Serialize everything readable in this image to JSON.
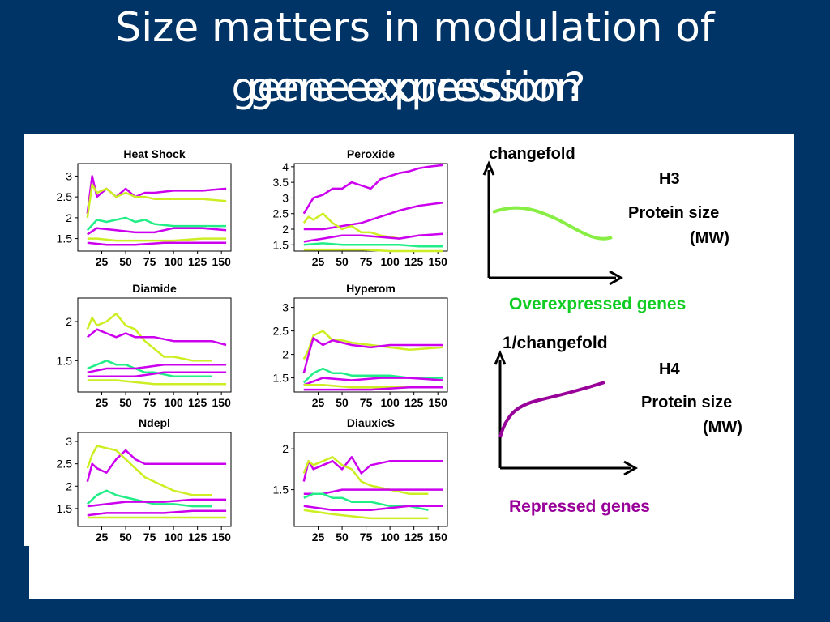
{
  "slide": {
    "title_line1": "Size matters in modulation of",
    "title_line2a": "gene expression",
    "title_line2b": "gene expression?"
  },
  "colors": {
    "background": "#003366",
    "panel": "#ffffff",
    "magenta": "#cc00ee",
    "yellow_green": "#ccee22",
    "green": "#22ee88",
    "light_green": "#88ee44",
    "purple": "#990099",
    "label_green": "#11cc22",
    "label_purple": "#990099"
  },
  "chart_data": [
    {
      "type": "line",
      "title": "Heat Shock",
      "x_ticks": [
        "25",
        "50",
        "75",
        "100",
        "125",
        "150"
      ],
      "xlim": [
        0,
        160
      ],
      "y_ticks": [
        "1.5",
        "2",
        "2.5",
        "3"
      ],
      "ylim": [
        1.2,
        3.3
      ],
      "series": [
        {
          "color": "magenta",
          "x": [
            10,
            15,
            20,
            30,
            40,
            50,
            60,
            70,
            80,
            100,
            130,
            155
          ],
          "y": [
            2.1,
            3.0,
            2.5,
            2.7,
            2.5,
            2.7,
            2.5,
            2.6,
            2.6,
            2.65,
            2.65,
            2.7
          ]
        },
        {
          "color": "yellow_green",
          "x": [
            10,
            15,
            20,
            30,
            40,
            50,
            60,
            70,
            80,
            100,
            130,
            155
          ],
          "y": [
            2.0,
            2.8,
            2.6,
            2.7,
            2.5,
            2.6,
            2.5,
            2.5,
            2.45,
            2.45,
            2.45,
            2.4
          ]
        },
        {
          "color": "green",
          "x": [
            10,
            20,
            30,
            40,
            50,
            60,
            70,
            80,
            100,
            130,
            155
          ],
          "y": [
            1.7,
            1.95,
            1.9,
            1.95,
            2.0,
            1.9,
            1.95,
            1.85,
            1.8,
            1.8,
            1.8
          ]
        },
        {
          "color": "magenta",
          "x": [
            10,
            20,
            40,
            60,
            80,
            100,
            130,
            155
          ],
          "y": [
            1.6,
            1.75,
            1.7,
            1.65,
            1.65,
            1.75,
            1.75,
            1.7
          ]
        },
        {
          "color": "yellow_green",
          "x": [
            10,
            20,
            40,
            60,
            80,
            100,
            130,
            155
          ],
          "y": [
            1.5,
            1.5,
            1.45,
            1.45,
            1.45,
            1.45,
            1.5,
            1.5
          ]
        },
        {
          "color": "magenta",
          "x": [
            10,
            30,
            60,
            90,
            120,
            155
          ],
          "y": [
            1.4,
            1.35,
            1.35,
            1.4,
            1.4,
            1.4
          ]
        }
      ]
    },
    {
      "type": "line",
      "title": "Peroxide",
      "x_ticks": [
        "25",
        "50",
        "75",
        "100",
        "125",
        "150"
      ],
      "xlim": [
        0,
        160
      ],
      "y_ticks": [
        "1.5",
        "2",
        "2.5",
        "3",
        "3.5",
        "4"
      ],
      "ylim": [
        1.3,
        4.1
      ],
      "series": [
        {
          "color": "magenta",
          "x": [
            10,
            20,
            30,
            40,
            50,
            60,
            70,
            80,
            90,
            100,
            110,
            120,
            130,
            140,
            155
          ],
          "y": [
            2.5,
            3.0,
            3.1,
            3.3,
            3.3,
            3.5,
            3.4,
            3.3,
            3.6,
            3.7,
            3.8,
            3.85,
            3.95,
            4.0,
            4.05
          ]
        },
        {
          "color": "magenta",
          "x": [
            10,
            30,
            50,
            70,
            90,
            110,
            130,
            155
          ],
          "y": [
            2.0,
            2.0,
            2.1,
            2.2,
            2.4,
            2.6,
            2.75,
            2.85
          ]
        },
        {
          "color": "yellow_green",
          "x": [
            10,
            15,
            20,
            30,
            40,
            50,
            60,
            70,
            80,
            90,
            100,
            110
          ],
          "y": [
            2.2,
            2.4,
            2.3,
            2.5,
            2.2,
            2.0,
            2.1,
            1.9,
            1.9,
            1.8,
            1.75,
            1.7
          ]
        },
        {
          "color": "magenta",
          "x": [
            10,
            30,
            50,
            70,
            90,
            110,
            130,
            155
          ],
          "y": [
            1.6,
            1.7,
            1.8,
            1.8,
            1.75,
            1.7,
            1.8,
            1.85
          ]
        },
        {
          "color": "green",
          "x": [
            10,
            30,
            50,
            70,
            90,
            110,
            130,
            155
          ],
          "y": [
            1.5,
            1.55,
            1.5,
            1.5,
            1.5,
            1.5,
            1.45,
            1.45
          ]
        },
        {
          "color": "yellow_green",
          "x": [
            10,
            40,
            70,
            100,
            130,
            155
          ],
          "y": [
            1.35,
            1.35,
            1.35,
            1.3,
            1.3,
            1.3
          ]
        }
      ]
    },
    {
      "type": "line",
      "title": "Diamide",
      "x_ticks": [
        "25",
        "50",
        "75",
        "100",
        "125",
        "150"
      ],
      "xlim": [
        0,
        160
      ],
      "y_ticks": [
        "1.5",
        "2"
      ],
      "ylim": [
        1.1,
        2.3
      ],
      "series": [
        {
          "color": "yellow_green",
          "x": [
            10,
            15,
            20,
            30,
            40,
            50,
            60,
            70,
            80,
            90,
            100,
            120,
            140
          ],
          "y": [
            1.9,
            2.05,
            1.95,
            2.0,
            2.1,
            1.95,
            1.9,
            1.75,
            1.65,
            1.55,
            1.55,
            1.5,
            1.5
          ]
        },
        {
          "color": "magenta",
          "x": [
            10,
            20,
            30,
            40,
            50,
            60,
            70,
            80,
            100,
            120,
            140,
            155
          ],
          "y": [
            1.8,
            1.9,
            1.85,
            1.8,
            1.85,
            1.8,
            1.8,
            1.8,
            1.75,
            1.75,
            1.75,
            1.7
          ]
        },
        {
          "color": "green",
          "x": [
            10,
            20,
            30,
            40,
            50,
            60,
            70,
            80,
            100,
            120,
            140
          ],
          "y": [
            1.4,
            1.45,
            1.5,
            1.45,
            1.45,
            1.4,
            1.35,
            1.35,
            1.3,
            1.3,
            1.3
          ]
        },
        {
          "color": "magenta",
          "x": [
            10,
            30,
            60,
            90,
            120,
            155
          ],
          "y": [
            1.35,
            1.4,
            1.4,
            1.45,
            1.45,
            1.45
          ]
        },
        {
          "color": "magenta",
          "x": [
            10,
            30,
            60,
            90,
            120,
            155
          ],
          "y": [
            1.3,
            1.3,
            1.3,
            1.35,
            1.35,
            1.35
          ]
        },
        {
          "color": "yellow_green",
          "x": [
            10,
            40,
            80,
            120,
            155
          ],
          "y": [
            1.25,
            1.25,
            1.2,
            1.2,
            1.2
          ]
        }
      ]
    },
    {
      "type": "line",
      "title": "Hyperom",
      "x_ticks": [
        "25",
        "50",
        "75",
        "100",
        "125",
        "150"
      ],
      "xlim": [
        0,
        160
      ],
      "y_ticks": [
        "1.5",
        "2",
        "2.5",
        "3"
      ],
      "ylim": [
        1.2,
        3.2
      ],
      "series": [
        {
          "color": "yellow_green",
          "x": [
            10,
            15,
            20,
            30,
            40,
            50,
            60,
            80,
            100,
            120,
            155
          ],
          "y": [
            1.9,
            2.1,
            2.4,
            2.5,
            2.3,
            2.3,
            2.25,
            2.2,
            2.15,
            2.1,
            2.15
          ]
        },
        {
          "color": "magenta",
          "x": [
            10,
            15,
            20,
            30,
            40,
            50,
            60,
            80,
            100,
            120,
            155
          ],
          "y": [
            1.6,
            2.0,
            2.35,
            2.2,
            2.3,
            2.25,
            2.2,
            2.15,
            2.2,
            2.2,
            2.2
          ]
        },
        {
          "color": "green",
          "x": [
            10,
            20,
            30,
            40,
            50,
            60,
            80,
            100,
            120,
            155
          ],
          "y": [
            1.4,
            1.6,
            1.7,
            1.6,
            1.6,
            1.55,
            1.55,
            1.55,
            1.5,
            1.5
          ]
        },
        {
          "color": "magenta",
          "x": [
            10,
            30,
            60,
            90,
            120,
            155
          ],
          "y": [
            1.35,
            1.5,
            1.45,
            1.5,
            1.5,
            1.45
          ]
        },
        {
          "color": "yellow_green",
          "x": [
            10,
            30,
            60,
            90,
            120,
            155
          ],
          "y": [
            1.35,
            1.35,
            1.3,
            1.3,
            1.3,
            1.3
          ]
        },
        {
          "color": "magenta",
          "x": [
            10,
            40,
            80,
            120,
            155
          ],
          "y": [
            1.25,
            1.25,
            1.25,
            1.3,
            1.3
          ]
        }
      ]
    },
    {
      "type": "line",
      "title": "Ndepl",
      "x_ticks": [
        "25",
        "50",
        "75",
        "100",
        "125",
        "150"
      ],
      "xlim": [
        0,
        160
      ],
      "y_ticks": [
        "1.5",
        "2",
        "2.5",
        "3"
      ],
      "ylim": [
        1.1,
        3.2
      ],
      "series": [
        {
          "color": "magenta",
          "x": [
            10,
            15,
            20,
            30,
            40,
            50,
            60,
            70,
            80,
            100,
            120,
            155
          ],
          "y": [
            2.1,
            2.5,
            2.4,
            2.3,
            2.6,
            2.8,
            2.6,
            2.5,
            2.5,
            2.5,
            2.5,
            2.5
          ]
        },
        {
          "color": "yellow_green",
          "x": [
            10,
            15,
            20,
            30,
            40,
            50,
            60,
            70,
            80,
            100,
            120,
            140
          ],
          "y": [
            2.4,
            2.7,
            2.9,
            2.85,
            2.8,
            2.6,
            2.4,
            2.2,
            2.1,
            1.9,
            1.8,
            1.8
          ]
        },
        {
          "color": "green",
          "x": [
            10,
            20,
            30,
            40,
            50,
            60,
            70,
            80,
            100,
            120,
            140
          ],
          "y": [
            1.6,
            1.8,
            1.9,
            1.8,
            1.75,
            1.7,
            1.65,
            1.6,
            1.6,
            1.55,
            1.55
          ]
        },
        {
          "color": "magenta",
          "x": [
            10,
            30,
            50,
            70,
            90,
            120,
            155
          ],
          "y": [
            1.55,
            1.6,
            1.65,
            1.65,
            1.65,
            1.7,
            1.7
          ]
        },
        {
          "color": "magenta",
          "x": [
            10,
            30,
            60,
            90,
            120,
            155
          ],
          "y": [
            1.35,
            1.4,
            1.4,
            1.4,
            1.45,
            1.45
          ]
        },
        {
          "color": "yellow_green",
          "x": [
            10,
            40,
            80,
            120,
            155
          ],
          "y": [
            1.3,
            1.3,
            1.3,
            1.3,
            1.3
          ]
        }
      ]
    },
    {
      "type": "line",
      "title": "DiauxicS",
      "x_ticks": [
        "25",
        "50",
        "75",
        "100",
        "125",
        "150"
      ],
      "xlim": [
        0,
        160
      ],
      "y_ticks": [
        "1.5",
        "2"
      ],
      "ylim": [
        1.05,
        2.2
      ],
      "series": [
        {
          "color": "magenta",
          "x": [
            10,
            15,
            20,
            30,
            40,
            50,
            60,
            70,
            80,
            100,
            120,
            155
          ],
          "y": [
            1.6,
            1.85,
            1.75,
            1.8,
            1.85,
            1.75,
            1.9,
            1.7,
            1.8,
            1.85,
            1.85,
            1.85
          ]
        },
        {
          "color": "yellow_green",
          "x": [
            10,
            15,
            20,
            30,
            40,
            50,
            60,
            70,
            80,
            100,
            120,
            140
          ],
          "y": [
            1.7,
            1.85,
            1.8,
            1.85,
            1.9,
            1.8,
            1.75,
            1.6,
            1.55,
            1.5,
            1.45,
            1.45
          ]
        },
        {
          "color": "magenta",
          "x": [
            10,
            30,
            50,
            70,
            90,
            120,
            155
          ],
          "y": [
            1.45,
            1.45,
            1.5,
            1.5,
            1.5,
            1.5,
            1.5
          ]
        },
        {
          "color": "green",
          "x": [
            10,
            20,
            30,
            40,
            50,
            60,
            80,
            100,
            120,
            140
          ],
          "y": [
            1.4,
            1.45,
            1.45,
            1.4,
            1.4,
            1.35,
            1.35,
            1.3,
            1.3,
            1.25
          ]
        },
        {
          "color": "magenta",
          "x": [
            10,
            40,
            80,
            120,
            155
          ],
          "y": [
            1.3,
            1.25,
            1.25,
            1.3,
            1.3
          ]
        },
        {
          "color": "yellow_green",
          "x": [
            10,
            40,
            80,
            120,
            140
          ],
          "y": [
            1.25,
            1.2,
            1.15,
            1.15,
            1.15
          ]
        }
      ]
    }
  ],
  "schematics": {
    "h3": {
      "y_label": "changefold",
      "tag": "H3",
      "x_label_line1": "Protein size",
      "x_label_line2": "(MW)",
      "caption": "Overexpressed genes"
    },
    "h4": {
      "y_label": "1/changefold",
      "tag": "H4",
      "x_label_line1": "Protein size",
      "x_label_line2": "(MW)",
      "caption": "Repressed genes"
    }
  }
}
